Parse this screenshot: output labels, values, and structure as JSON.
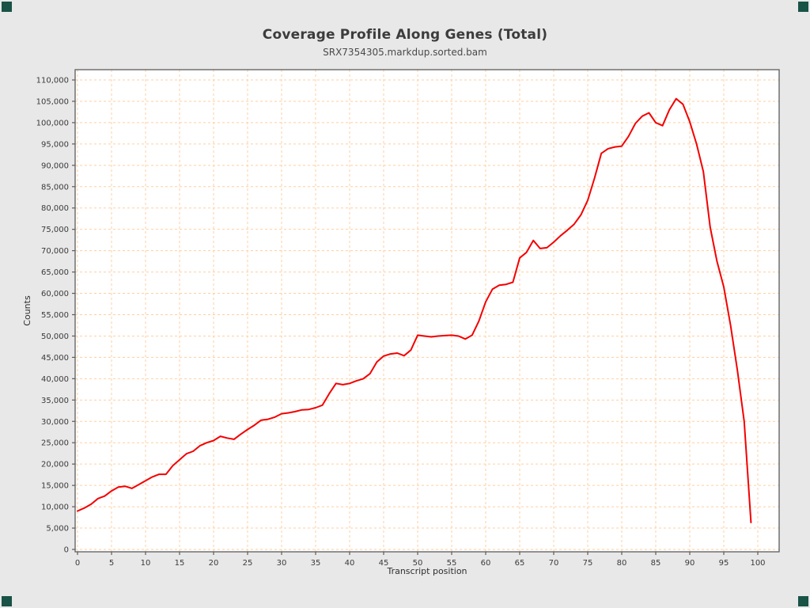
{
  "page": {
    "background": "#e8e8e8"
  },
  "header": {
    "title": "Coverage Profile Along Genes (Total)",
    "subtitle": "SRX7354305.markdup.sorted.bam"
  },
  "colors": {
    "line": "#f40000",
    "grid": "#ffcfa0",
    "plot_background": "#ffffff",
    "plot_border": "#5c5c5c",
    "tick": "#4a4a4a",
    "corner_marker": "#185346"
  },
  "chart_data": {
    "type": "line",
    "title": "Coverage Profile Along Genes (Total)",
    "subtitle": "SRX7354305.markdup.sorted.bam",
    "xlabel": "Transcript position",
    "ylabel": "Counts",
    "x_range": [
      0,
      99
    ],
    "xlim": [
      -0.35,
      103.1
    ],
    "ylim": [
      0,
      110000
    ],
    "x_ticks": [
      0,
      5,
      10,
      15,
      20,
      25,
      30,
      35,
      40,
      45,
      50,
      55,
      60,
      65,
      70,
      75,
      80,
      85,
      90,
      95,
      100
    ],
    "y_ticks": [
      0,
      5000,
      10000,
      15000,
      20000,
      25000,
      30000,
      35000,
      40000,
      45000,
      50000,
      55000,
      60000,
      65000,
      70000,
      75000,
      80000,
      85000,
      90000,
      95000,
      100000,
      105000,
      110000
    ],
    "grid": true,
    "grid_style": "dashed",
    "legend_position": "none",
    "series": [
      {
        "name": "coverage",
        "color": "#f40000",
        "values": [
          9000,
          9700,
          10600,
          11900,
          12500,
          13700,
          14600,
          14800,
          14300,
          15200,
          16100,
          17000,
          17600,
          17600,
          19600,
          21000,
          22400,
          23000,
          24300,
          25000,
          25500,
          26500,
          26100,
          25800,
          27000,
          28100,
          29100,
          30300,
          30500,
          31000,
          31800,
          32000,
          32300,
          32700,
          32800,
          33200,
          33800,
          36500,
          38900,
          38600,
          38900,
          39500,
          40000,
          41200,
          43900,
          45300,
          45800,
          46000,
          45400,
          46700,
          50200,
          50000,
          49800,
          50000,
          50100,
          50200,
          50000,
          49300,
          50200,
          53500,
          58000,
          61000,
          61900,
          62100,
          62600,
          68300,
          69600,
          72400,
          70500,
          70700,
          72000,
          73500,
          74800,
          76200,
          78400,
          81800,
          87000,
          92800,
          93900,
          94300,
          94500,
          96800,
          99800,
          101500,
          102300,
          100000,
          99300,
          103000,
          105600,
          104300,
          100200,
          95000,
          88500,
          75500,
          67500,
          61500,
          52500,
          42000,
          30000,
          6300
        ]
      }
    ]
  }
}
